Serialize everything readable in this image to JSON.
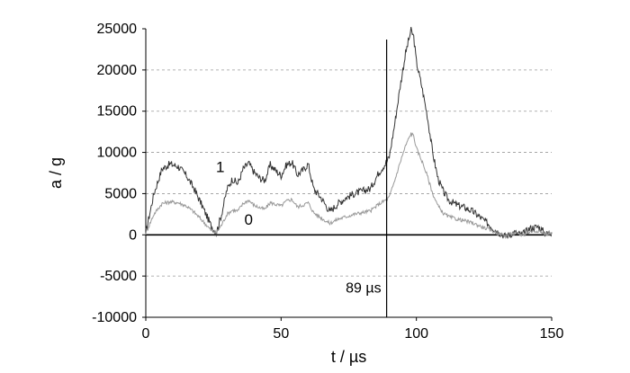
{
  "chart_data": {
    "type": "line",
    "title": "",
    "xlabel": "t / µs",
    "ylabel": "a / g",
    "xlim": [
      0,
      150
    ],
    "ylim": [
      -10000,
      25000
    ],
    "x_ticks": [
      0,
      50,
      100,
      150
    ],
    "y_ticks": [
      -10000,
      -5000,
      0,
      5000,
      10000,
      15000,
      20000,
      25000
    ],
    "grid": "horizontal dashed",
    "annotations": [
      {
        "text": "89 µs",
        "x": 89,
        "kind": "vertical-line"
      }
    ],
    "series": [
      {
        "name": "1",
        "color": "#333333",
        "x": [
          0,
          3,
          6,
          9,
          12,
          15,
          18,
          21,
          24,
          26,
          28,
          30,
          32,
          34,
          36,
          38,
          40,
          42,
          44,
          46,
          48,
          50,
          52,
          54,
          56,
          58,
          60,
          62,
          65,
          68,
          71,
          74,
          77,
          80,
          83,
          86,
          88,
          89,
          90,
          92,
          94,
          96,
          98,
          99,
          100,
          102,
          104,
          106,
          108,
          110,
          112,
          115,
          118,
          121,
          124,
          127,
          130,
          133,
          136,
          139,
          142,
          145,
          148,
          150
        ],
        "values": [
          300,
          5000,
          8000,
          8600,
          8300,
          7200,
          5500,
          3400,
          1200,
          200,
          2500,
          5500,
          6800,
          6200,
          8000,
          8700,
          7600,
          6900,
          6600,
          8500,
          7800,
          7200,
          8500,
          8800,
          7300,
          7800,
          8600,
          5600,
          4400,
          2800,
          3800,
          4500,
          5000,
          5300,
          5600,
          7500,
          8400,
          8800,
          9500,
          13500,
          18000,
          22000,
          24800,
          24000,
          21000,
          18000,
          14500,
          10000,
          6800,
          5200,
          4200,
          3600,
          3300,
          2800,
          2000,
          1200,
          400,
          -200,
          300,
          0,
          800,
          1000,
          100,
          300
        ]
      },
      {
        "name": "0",
        "color": "#999999",
        "x": [
          0,
          3,
          6,
          9,
          12,
          15,
          18,
          21,
          24,
          26,
          28,
          30,
          32,
          34,
          36,
          38,
          40,
          42,
          44,
          46,
          48,
          50,
          52,
          54,
          56,
          58,
          60,
          62,
          65,
          68,
          71,
          74,
          77,
          80,
          83,
          86,
          88,
          89,
          90,
          92,
          94,
          96,
          98,
          99,
          100,
          102,
          104,
          106,
          108,
          110,
          112,
          115,
          118,
          121,
          124,
          127,
          130,
          133,
          136,
          139,
          142,
          145,
          148,
          150
        ],
        "values": [
          200,
          2500,
          3800,
          4000,
          3900,
          3500,
          2700,
          1700,
          600,
          200,
          1200,
          2500,
          3000,
          2900,
          3800,
          4200,
          3600,
          3300,
          3100,
          3900,
          3700,
          3500,
          4100,
          4300,
          3400,
          3600,
          3900,
          2700,
          2000,
          1400,
          1900,
          2200,
          2500,
          2700,
          2900,
          3700,
          4100,
          4300,
          4600,
          6600,
          8800,
          10800,
          12300,
          12000,
          10500,
          9000,
          7200,
          5000,
          3500,
          2600,
          2200,
          1900,
          1700,
          1400,
          1000,
          600,
          200,
          -100,
          200,
          0,
          400,
          500,
          100,
          200
        ]
      }
    ]
  }
}
